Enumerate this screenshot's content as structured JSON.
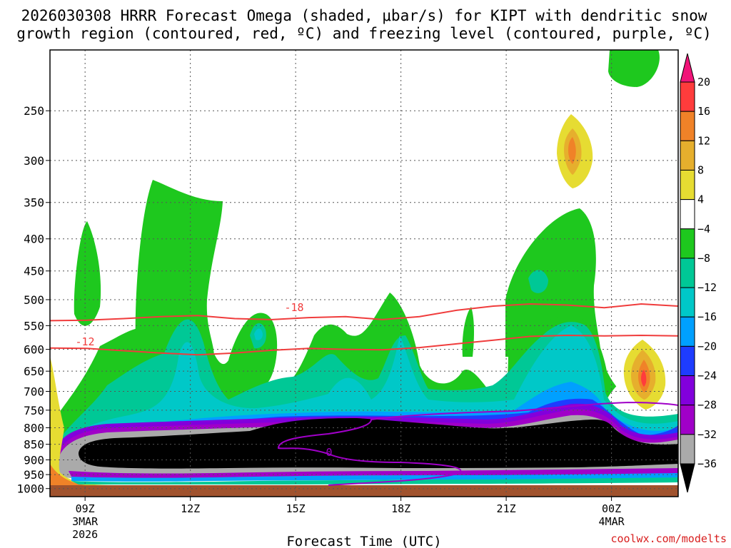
{
  "chart_data": {
    "type": "heatmap",
    "title_line1": "2026030308 HRRR Forecast Omega (shaded, μbar/s) for KIPT with dendritic snow",
    "title_line2": "growth region (contoured, red, ºC) and freezing level (contoured, purple, ºC)",
    "xlabel": "Forecast Time (UTC)",
    "x_ticks": [
      {
        "hour": 9,
        "label": "09Z",
        "sub1": "3MAR",
        "sub2": "2026"
      },
      {
        "hour": 12,
        "label": "12Z",
        "sub1": "",
        "sub2": ""
      },
      {
        "hour": 15,
        "label": "15Z",
        "sub1": "",
        "sub2": ""
      },
      {
        "hour": 18,
        "label": "18Z",
        "sub1": "",
        "sub2": ""
      },
      {
        "hour": 21,
        "label": "21Z",
        "sub1": "",
        "sub2": ""
      },
      {
        "hour": 24,
        "label": "00Z",
        "sub1": "4MAR",
        "sub2": ""
      }
    ],
    "x_range": [
      8.0,
      25.9
    ],
    "y_range": [
      1030,
      200
    ],
    "y_ticks": [
      250,
      300,
      350,
      400,
      450,
      500,
      550,
      600,
      650,
      700,
      750,
      800,
      850,
      900,
      950,
      1000
    ],
    "colorbar": {
      "labels": [
        "20",
        "16",
        "12",
        "8",
        "4",
        "−4",
        "−8",
        "−12",
        "−16",
        "−20",
        "−24",
        "−28",
        "−32",
        "−36"
      ],
      "colors": [
        "#f01478",
        "#ff3c3c",
        "#f08228",
        "#e6af2d",
        "#e6dc32",
        "#ffffff",
        "#1ec81e",
        "#00c896",
        "#00c8c8",
        "#00a0ff",
        "#1e3cff",
        "#8200dc",
        "#a000c8",
        "#aaaaaa",
        "#000000"
      ]
    },
    "contours": {
      "dgz_minus18": {
        "label": "-18",
        "color": "#f03c3c",
        "p": [
          540,
          539,
          536,
          532,
          530,
          536,
          538,
          534,
          532,
          538,
          532,
          520,
          512,
          508,
          510,
          515,
          508,
          512
        ]
      },
      "dgz_minus12": {
        "label": "-12",
        "color": "#f03c3c",
        "p": [
          597,
          598,
          603,
          608,
          612,
          608,
          602,
          598,
          600,
          601,
          596,
          588,
          580,
          572,
          570,
          571,
          570,
          571
        ]
      },
      "freezing_0": {
        "label": "0",
        "color": "#a000c8"
      }
    },
    "credit": "coolwx.com/modelts"
  }
}
